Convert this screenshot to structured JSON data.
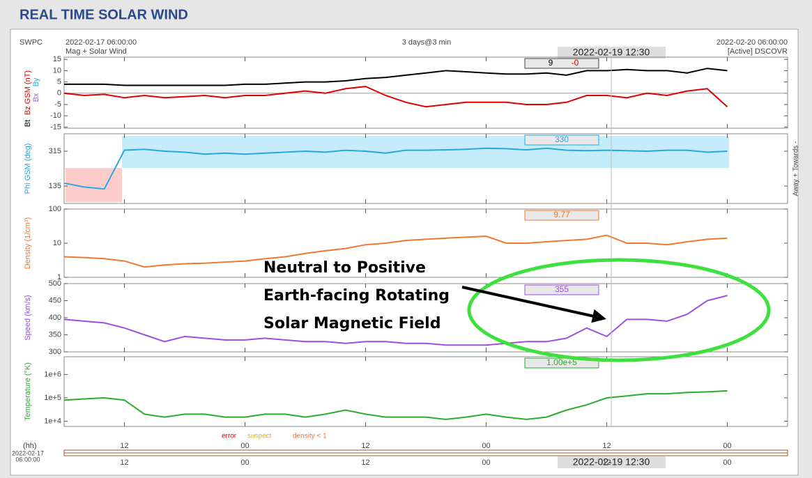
{
  "page": {
    "title": "REAL TIME SOLAR WIND"
  },
  "header": {
    "source": "SWPC",
    "start": "2022-02-17 06:00:00",
    "product": "Mag + Solar Wind",
    "span": "3 days@3 min",
    "end": "2022-02-20 06:00:00",
    "spacecraft": "[Active] DSCOVR",
    "cursor": "2022-02-19 12:30"
  },
  "quality_legend": [
    {
      "name": "error",
      "color": "#e00000"
    },
    {
      "name": "suspect",
      "color": "#e0b000"
    },
    {
      "name": "density < 1",
      "color": "#f07830"
    }
  ],
  "footer": {
    "unit": "(hh)",
    "start_date": "2022-02-17",
    "start_time": "06:00:00"
  },
  "annotation": [
    "Neutral to Positive",
    "Earth-facing Rotating",
    "Solar Magnetic Field"
  ],
  "chart_data": [
    {
      "type": "line",
      "ylabel": "Bz GSM (nT)",
      "ylabel_color": "#e00000",
      "component_labels": [
        {
          "text": "Bx",
          "color": "#9c5fd6"
        },
        {
          "text": "By",
          "color": "#29a8e0"
        },
        {
          "text": "Bt",
          "color": "#000000"
        }
      ],
      "readout_labels": [
        {
          "text": "9",
          "color": "#000000"
        },
        {
          "text": "-0",
          "color": "#e00000"
        }
      ],
      "xlim": [
        0,
        72
      ],
      "xticks": [
        {
          "value": 6,
          "label": "12"
        },
        {
          "value": 18,
          "label": "00"
        },
        {
          "value": 30,
          "label": "12"
        },
        {
          "value": 42,
          "label": "00"
        },
        {
          "value": 54,
          "label": "12"
        },
        {
          "value": 66,
          "label": "00"
        }
      ],
      "ylim": [
        -15.5,
        16
      ],
      "yticks": [
        15,
        10,
        5,
        0,
        -5,
        -10,
        -15
      ],
      "zero_line": true,
      "x": [
        0,
        2,
        4,
        6,
        8,
        10,
        12,
        14,
        16,
        18,
        20,
        22,
        24,
        26,
        28,
        30,
        32,
        34,
        36,
        38,
        40,
        42,
        44,
        46,
        48,
        50,
        52,
        54,
        56,
        58,
        60,
        62,
        64,
        66
      ],
      "series": [
        {
          "name": "Bt",
          "color": "#000000",
          "values": [
            4,
            4,
            4,
            3.5,
            3.5,
            3.5,
            3.5,
            3.5,
            3.5,
            4,
            4,
            4.5,
            5,
            5,
            5.5,
            6.5,
            7,
            8,
            9,
            10,
            9.5,
            9,
            8.5,
            8.5,
            9,
            8,
            10,
            10,
            10.5,
            10,
            10,
            9,
            11,
            10
          ]
        },
        {
          "name": "Bz",
          "color": "#e00000",
          "values": [
            0,
            -1,
            -0.5,
            -2,
            -1,
            -2,
            -1.5,
            -1,
            -2,
            -1,
            -1,
            0,
            1,
            0,
            2,
            3,
            -1,
            -4,
            -6,
            -5,
            -4,
            -4,
            -4,
            -5,
            -5,
            -4,
            -1,
            -1,
            -2,
            0,
            -1,
            1,
            2,
            -6
          ]
        }
      ]
    },
    {
      "type": "line",
      "ylabel": "Phi GSM (deg)",
      "ylabel_color": "#29a8e0",
      "right_label": "Away + Towards -",
      "readout_labels": [
        {
          "text": "330",
          "color": "#29a8e0"
        }
      ],
      "xlim": [
        0,
        72
      ],
      "xticks": [
        {
          "value": 6,
          "label": "12"
        },
        {
          "value": 18,
          "label": "00"
        },
        {
          "value": 30,
          "label": "12"
        },
        {
          "value": 42,
          "label": "00"
        },
        {
          "value": 54,
          "label": "12"
        },
        {
          "value": 66,
          "label": "00"
        }
      ],
      "ylim": [
        45,
        405
      ],
      "yticks": [
        315,
        135
      ],
      "x": [
        0,
        2,
        4,
        6,
        8,
        10,
        12,
        14,
        16,
        18,
        20,
        22,
        24,
        26,
        28,
        30,
        32,
        34,
        36,
        38,
        40,
        42,
        44,
        46,
        48,
        50,
        52,
        54,
        56,
        58,
        60,
        62,
        64,
        66
      ],
      "series": [
        {
          "name": "Phi",
          "color": "#29a8e0",
          "values": [
            150,
            130,
            120,
            320,
            325,
            315,
            310,
            300,
            305,
            300,
            305,
            310,
            315,
            310,
            320,
            315,
            305,
            320,
            320,
            322,
            325,
            330,
            328,
            322,
            330,
            320,
            318,
            320,
            318,
            315,
            320,
            320,
            310,
            315
          ]
        }
      ]
    },
    {
      "type": "line",
      "ylabel": "Density (1/cm³)",
      "ylabel_color": "#f07830",
      "log_scale": true,
      "readout_labels": [
        {
          "text": "9.77",
          "color": "#f07830"
        }
      ],
      "xlim": [
        0,
        72
      ],
      "xticks": [
        {
          "value": 6,
          "label": "12"
        },
        {
          "value": 18,
          "label": "00"
        },
        {
          "value": 30,
          "label": "12"
        },
        {
          "value": 42,
          "label": "00"
        },
        {
          "value": 54,
          "label": "12"
        },
        {
          "value": 66,
          "label": "00"
        }
      ],
      "ylim": [
        1,
        100
      ],
      "yticks": [
        100,
        10,
        1
      ],
      "x": [
        0,
        2,
        4,
        6,
        8,
        10,
        12,
        14,
        16,
        18,
        20,
        22,
        24,
        26,
        28,
        30,
        32,
        34,
        36,
        38,
        40,
        42,
        44,
        46,
        48,
        50,
        52,
        54,
        56,
        58,
        60,
        62,
        64,
        66
      ],
      "series": [
        {
          "name": "Density",
          "color": "#f07830",
          "values": [
            4,
            3.8,
            3.5,
            3,
            2,
            2.3,
            2.5,
            2.6,
            2.8,
            3,
            3.5,
            4,
            5,
            6,
            7,
            9,
            10,
            12,
            13,
            14,
            15,
            16,
            10,
            10,
            11,
            12,
            13,
            17,
            10,
            10,
            9,
            11,
            13,
            14
          ]
        }
      ]
    },
    {
      "type": "line",
      "ylabel": "Speed (km/s)",
      "ylabel_color": "#9c4fe0",
      "readout_labels": [
        {
          "text": "355",
          "color": "#9c4fe0"
        }
      ],
      "xlim": [
        0,
        72
      ],
      "xticks": [
        {
          "value": 6,
          "label": "12"
        },
        {
          "value": 18,
          "label": "00"
        },
        {
          "value": 30,
          "label": "12"
        },
        {
          "value": 42,
          "label": "00"
        },
        {
          "value": 54,
          "label": "12"
        },
        {
          "value": 66,
          "label": "00"
        }
      ],
      "ylim": [
        300,
        500
      ],
      "yticks": [
        500,
        450,
        400,
        350,
        300
      ],
      "x": [
        0,
        2,
        4,
        6,
        8,
        10,
        12,
        14,
        16,
        18,
        20,
        22,
        24,
        26,
        28,
        30,
        32,
        34,
        36,
        38,
        40,
        42,
        44,
        46,
        48,
        50,
        52,
        54,
        56,
        58,
        60,
        62,
        64,
        66
      ],
      "series": [
        {
          "name": "Speed",
          "color": "#9c4fe0",
          "values": [
            395,
            390,
            385,
            370,
            350,
            330,
            345,
            340,
            335,
            335,
            340,
            335,
            330,
            330,
            325,
            330,
            330,
            325,
            325,
            320,
            320,
            320,
            325,
            330,
            330,
            340,
            370,
            345,
            395,
            395,
            390,
            410,
            450,
            465
          ]
        }
      ]
    },
    {
      "type": "line",
      "ylabel": "Temperature (°K)",
      "ylabel_color": "#2aad2a",
      "log_scale": true,
      "readout_labels": [
        {
          "text": "1.00e+5",
          "color": "#2aad2a"
        }
      ],
      "xlim": [
        0,
        72
      ],
      "xticks": [
        {
          "value": 6,
          "label": "12"
        },
        {
          "value": 18,
          "label": "00"
        },
        {
          "value": 30,
          "label": "12"
        },
        {
          "value": 42,
          "label": "00"
        },
        {
          "value": 54,
          "label": "12"
        },
        {
          "value": 66,
          "label": "00"
        }
      ],
      "ylim": [
        6000,
        5700000
      ],
      "yticks": [
        {
          "value": 1000000,
          "label": "1e+6"
        },
        {
          "value": 100000,
          "label": "1e+5"
        },
        {
          "value": 10000,
          "label": "1e+4"
        }
      ],
      "x": [
        0,
        2,
        4,
        6,
        8,
        10,
        12,
        14,
        16,
        18,
        20,
        22,
        24,
        26,
        28,
        30,
        32,
        34,
        36,
        38,
        40,
        42,
        44,
        46,
        48,
        50,
        52,
        54,
        56,
        58,
        60,
        62,
        64,
        66
      ],
      "series": [
        {
          "name": "Temperature",
          "color": "#2aad2a",
          "values": [
            80000,
            90000,
            100000,
            80000,
            20000,
            15000,
            20000,
            20000,
            15000,
            15000,
            20000,
            20000,
            15000,
            20000,
            30000,
            20000,
            15000,
            15000,
            15000,
            12000,
            15000,
            20000,
            15000,
            12000,
            15000,
            30000,
            50000,
            100000,
            120000,
            150000,
            150000,
            170000,
            180000,
            200000
          ]
        }
      ]
    }
  ]
}
